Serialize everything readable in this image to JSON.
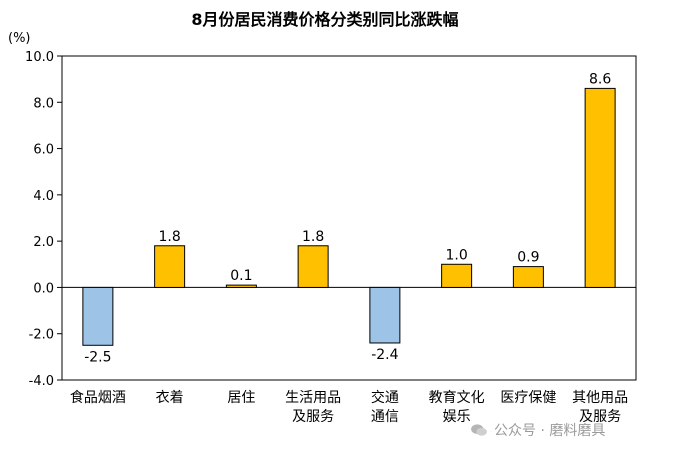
{
  "chart_data": {
    "type": "bar",
    "title": "8月份居民消费价格分类别同比涨跌幅",
    "yunit": "(%)",
    "ylim": [
      -4.0,
      10.0
    ],
    "yticks": [
      "10.0",
      "8.0",
      "6.0",
      "4.0",
      "2.0",
      "0.0",
      "-2.0",
      "-4.0"
    ],
    "grid": false,
    "categories": [
      [
        "食品烟酒"
      ],
      [
        "衣着"
      ],
      [
        "居住"
      ],
      [
        "生活用品",
        "及服务"
      ],
      [
        "交通",
        "通信"
      ],
      [
        "教育文化",
        "娱乐"
      ],
      [
        "医疗保健"
      ],
      [
        "其他用品",
        "及服务"
      ]
    ],
    "values": [
      -2.5,
      1.8,
      0.1,
      1.8,
      -2.4,
      1.0,
      0.9,
      8.6
    ],
    "labels": [
      "-2.5",
      "1.8",
      "0.1",
      "1.8",
      "-2.4",
      "1.0",
      "0.9",
      "8.6"
    ],
    "colors": {
      "positive": "#FFC000",
      "negative": "#9DC3E6",
      "stroke": "#000000"
    }
  },
  "watermark": {
    "icon": "wechat-icon",
    "text": "公众号 · 磨料磨具"
  }
}
